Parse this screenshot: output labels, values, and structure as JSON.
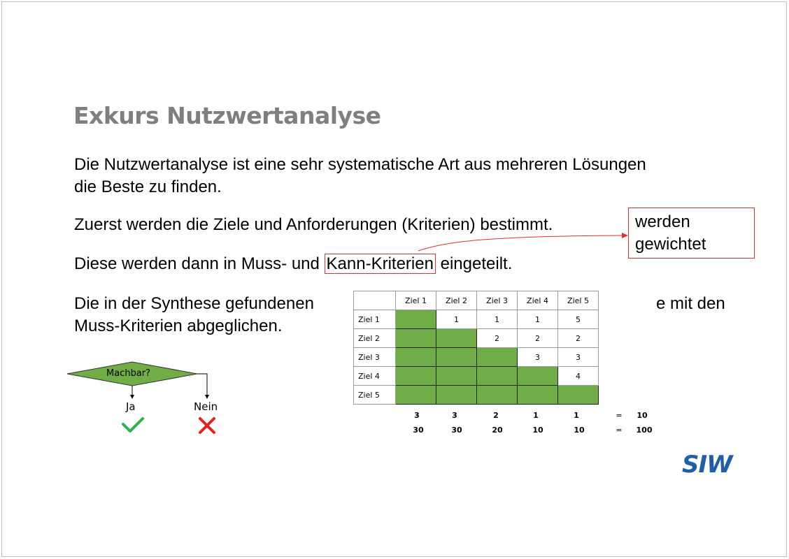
{
  "title": "Exkurs Nutzwertanalyse",
  "paragraphs": {
    "p1_line1": "Die Nutzwertanalyse ist eine sehr systematische Art aus mehreren Lösungen",
    "p1_line2": "die Beste zu finden.",
    "p2": "Zuerst werden die Ziele und Anforderungen (Kriterien) bestimmt.",
    "p3_before": "Diese werden dann in Muss- und ",
    "p3_highlight": "Kann-Kriterien",
    "p3_after": " eingeteilt.",
    "p4_line1_left": "Die in der Synthese gefundenen",
    "p4_line1_right": "e mit den",
    "p4_line2": "Muss-Kriterien abgeglichen."
  },
  "callout": {
    "line1": "werden",
    "line2": "gewichtet"
  },
  "flowchart": {
    "question": "Machbar?",
    "yes": "Ja",
    "no": "Nein",
    "yes_icon": "checkmark-icon",
    "no_icon": "cross-icon"
  },
  "matrix": {
    "columns": [
      "Ziel 1",
      "Ziel 2",
      "Ziel 3",
      "Ziel 4",
      "Ziel 5"
    ],
    "rows": [
      {
        "label": "Ziel 1",
        "cells": [
          "",
          "1",
          "1",
          "1",
          "5"
        ]
      },
      {
        "label": "Ziel 2",
        "cells": [
          "",
          "",
          "2",
          "2",
          "2"
        ]
      },
      {
        "label": "Ziel 3",
        "cells": [
          "",
          "",
          "",
          "3",
          "3"
        ]
      },
      {
        "label": "Ziel 4",
        "cells": [
          "",
          "",
          "",
          "",
          "4"
        ]
      },
      {
        "label": "Ziel 5",
        "cells": [
          "",
          "",
          "",
          "",
          ""
        ]
      }
    ],
    "sums": [
      "3",
      "3",
      "2",
      "1",
      "1"
    ],
    "sum_eq": "=",
    "sum_total": "10",
    "weights": [
      "30",
      "30",
      "20",
      "10",
      "10"
    ],
    "weight_eq": "=",
    "weight_total": "100"
  },
  "logo_text": "SIW",
  "colors": {
    "title": "#7f7f7f",
    "accent_red": "#e03030",
    "matrix_green": "#70ad47",
    "check_green": "#2db34a",
    "cross_red": "#e8201d",
    "logo_blue": "#1f5fa8"
  }
}
